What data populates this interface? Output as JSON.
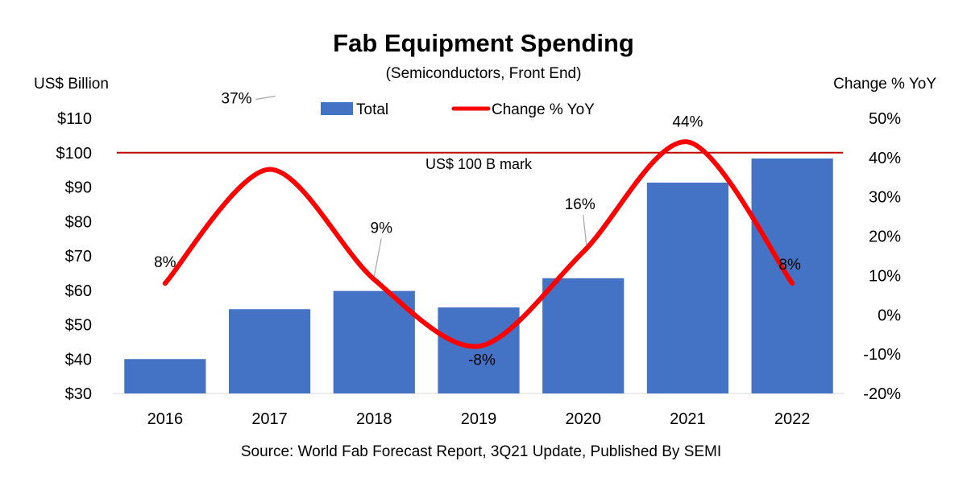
{
  "chart_data": {
    "type": "bar",
    "title": "Fab Equipment Spending",
    "subtitle": "(Semiconductors, Front End)",
    "ylabel": "US$ Billion",
    "y2label": "Change % YoY",
    "source": "Source: World Fab Forecast Report, 3Q21 Update, Published By SEMI",
    "categories": [
      "2016",
      "2017",
      "2018",
      "2019",
      "2020",
      "2021",
      "2022"
    ],
    "ylim": [
      30,
      110
    ],
    "y_ticks": [
      30,
      40,
      50,
      60,
      70,
      80,
      90,
      100,
      110
    ],
    "y_tick_labels": [
      "$30",
      "$40",
      "$50",
      "$60",
      "$70",
      "$80",
      "$90",
      "$100",
      "$110"
    ],
    "y2lim": [
      -20,
      50
    ],
    "y2_ticks": [
      -20,
      -10,
      0,
      10,
      20,
      30,
      40,
      50
    ],
    "y2_tick_labels": [
      "-20%",
      "-10%",
      "0%",
      "10%",
      "20%",
      "30%",
      "40%",
      "50%"
    ],
    "series": [
      {
        "name": "Total",
        "type": "bar",
        "axis": "left",
        "color": "#4472C4",
        "values": [
          40,
          54.5,
          59.8,
          55,
          63.5,
          91.3,
          98.3
        ]
      },
      {
        "name": "Change % YoY",
        "type": "line",
        "axis": "right",
        "color": "#FF0000",
        "values": [
          8,
          37,
          9,
          -8,
          16,
          44,
          8
        ],
        "labels": [
          "8%",
          "37%",
          "9%",
          "-8%",
          "16%",
          "44%",
          "8%"
        ]
      }
    ],
    "reference_line": {
      "value": 100,
      "axis": "left",
      "label": "US$ 100 B mark",
      "color": "#C00000"
    },
    "legend": "top-center",
    "grid": false
  }
}
